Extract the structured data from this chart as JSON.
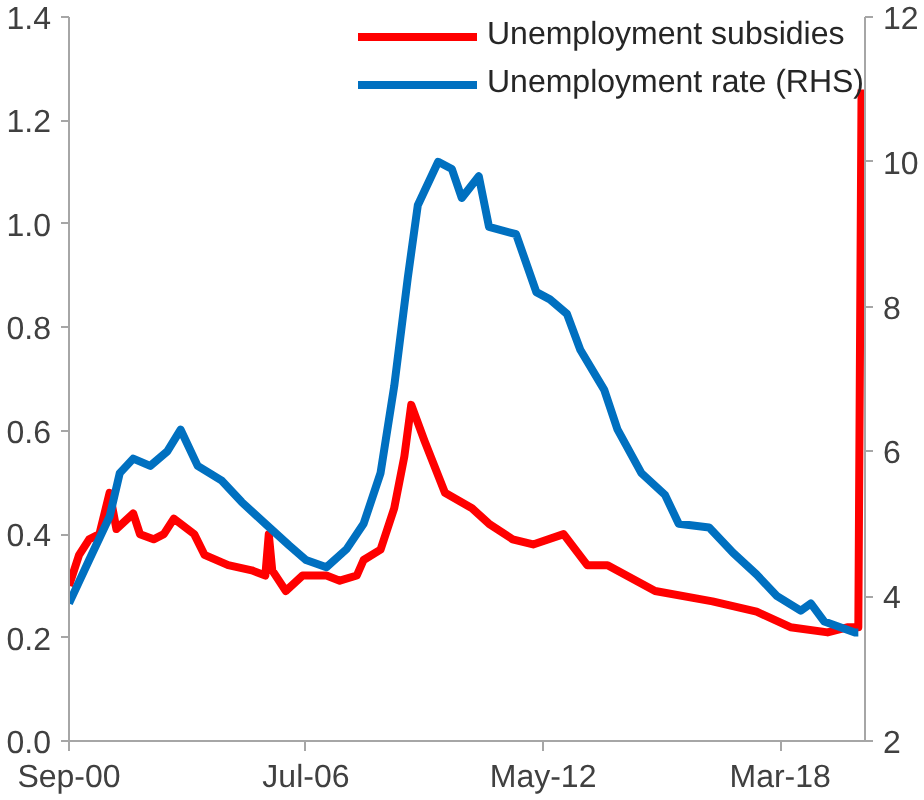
{
  "chart_data": {
    "type": "line",
    "legend": "top right",
    "grid": false,
    "xlim": [
      "2000-09",
      "2020-04"
    ],
    "xticks": [
      {
        "value": "2000-09",
        "label": "Sep-00"
      },
      {
        "value": "2006-07",
        "label": "Jul-06"
      },
      {
        "value": "2012-05",
        "label": "May-12"
      },
      {
        "value": "2018-03",
        "label": "Mar-18"
      }
    ],
    "ylim": [
      0,
      1.4
    ],
    "yticks": [
      {
        "value": 0,
        "label": "0.0"
      },
      0.2,
      0.4,
      0.6,
      0.8,
      {
        "value": 1,
        "label": "1.0"
      },
      1.2,
      1.4
    ],
    "y2lim": [
      2,
      12
    ],
    "y2ticks": [
      2,
      4,
      6,
      8,
      10,
      12
    ],
    "series": [
      {
        "name": "Unemployment subsidies",
        "color": "#ff0000",
        "x": [
          "2000-09",
          "2000-12",
          "2001-03",
          "2001-06",
          "2001-09",
          "2001-11",
          "2002-04",
          "2002-06",
          "2002-10",
          "2003-01",
          "2003-04",
          "2003-10",
          "2004-01",
          "2004-08",
          "2005-03",
          "2005-07",
          "2005-08",
          "2005-09",
          "2006-01",
          "2006-06",
          "2007-01",
          "2007-05",
          "2007-10",
          "2007-12",
          "2008-05",
          "2008-09",
          "2008-12",
          "2009-02",
          "2009-06",
          "2009-12",
          "2010-08",
          "2011-01",
          "2011-08",
          "2012-02",
          "2012-11",
          "2013-06",
          "2013-12",
          "2015-02",
          "2016-07",
          "2017-08",
          "2018-06",
          "2019-05",
          "2019-11",
          "2020-02",
          "2020-03"
        ],
        "values": [
          0.3,
          0.36,
          0.39,
          0.4,
          0.48,
          0.41,
          0.44,
          0.4,
          0.39,
          0.4,
          0.43,
          0.4,
          0.36,
          0.34,
          0.33,
          0.32,
          0.4,
          0.33,
          0.29,
          0.32,
          0.32,
          0.31,
          0.32,
          0.35,
          0.37,
          0.45,
          0.55,
          0.65,
          0.58,
          0.48,
          0.45,
          0.42,
          0.39,
          0.38,
          0.4,
          0.34,
          0.34,
          0.29,
          0.27,
          0.25,
          0.22,
          0.21,
          0.22,
          0.22,
          1.26
        ]
      },
      {
        "name": "Unemployment rate (RHS)",
        "color": "#0070c0",
        "axis": "y2",
        "x": [
          "2000-09",
          "2001-03",
          "2001-09",
          "2001-12",
          "2002-04",
          "2002-09",
          "2003-02",
          "2003-06",
          "2003-11",
          "2004-06",
          "2004-12",
          "2005-07",
          "2006-02",
          "2006-07",
          "2007-01",
          "2007-07",
          "2007-12",
          "2008-05",
          "2008-09",
          "2009-01",
          "2009-04",
          "2009-10",
          "2010-02",
          "2010-05",
          "2010-10",
          "2011-01",
          "2011-09",
          "2012-03",
          "2012-07",
          "2012-12",
          "2013-04",
          "2013-11",
          "2014-03",
          "2014-10",
          "2015-05",
          "2015-09",
          "2016-06",
          "2017-01",
          "2017-08",
          "2018-02",
          "2018-09",
          "2018-12",
          "2019-04",
          "2020-01",
          "2020-02"
        ],
        "values": [
          3.9,
          4.5,
          5.1,
          5.7,
          5.9,
          5.8,
          6.0,
          6.3,
          5.8,
          5.6,
          5.3,
          5.0,
          4.7,
          4.5,
          4.4,
          4.65,
          5.0,
          5.7,
          6.9,
          8.4,
          9.4,
          10.0,
          9.9,
          9.5,
          9.8,
          9.1,
          9.0,
          8.2,
          8.1,
          7.9,
          7.4,
          6.85,
          6.3,
          5.7,
          5.4,
          5.0,
          4.95,
          4.6,
          4.3,
          4.0,
          3.8,
          3.9,
          3.65,
          3.5,
          3.5
        ]
      }
    ]
  }
}
